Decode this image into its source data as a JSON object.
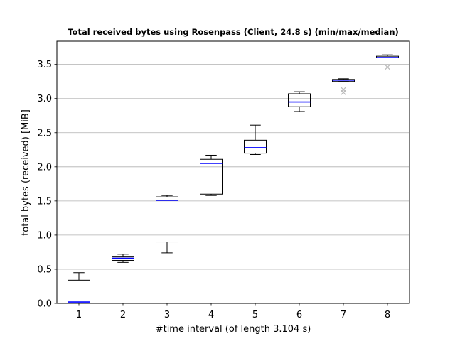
{
  "chart_data": {
    "type": "box",
    "title": "Total received bytes using Rosenpass (Client, 24.8 s) (min/max/median)",
    "xlabel": "#time interval (of length 3.104 s)",
    "ylabel": "total bytes (received) [MiB]",
    "ylim": [
      0,
      3.84
    ],
    "xlim": [
      0.5,
      8.5
    ],
    "yticks": [
      0.0,
      0.5,
      1.0,
      1.5,
      2.0,
      2.5,
      3.0,
      3.5
    ],
    "ytick_labels": [
      "0.0",
      "0.5",
      "1.0",
      "1.5",
      "2.0",
      "2.5",
      "3.0",
      "3.5"
    ],
    "categories": [
      "1",
      "2",
      "3",
      "4",
      "5",
      "6",
      "7",
      "8"
    ],
    "grid": "horizontal",
    "median_color": "#0000ff",
    "outlier_color": "#bbbbbb",
    "boxes": [
      {
        "x": 1,
        "whisker_low": 0.0,
        "q1": 0.0,
        "median": 0.02,
        "q3": 0.34,
        "whisker_high": 0.45,
        "outliers": []
      },
      {
        "x": 2,
        "whisker_low": 0.6,
        "q1": 0.63,
        "median": 0.66,
        "q3": 0.68,
        "whisker_high": 0.72,
        "outliers": []
      },
      {
        "x": 3,
        "whisker_low": 0.74,
        "q1": 0.9,
        "median": 1.51,
        "q3": 1.56,
        "whisker_high": 1.58,
        "outliers": []
      },
      {
        "x": 4,
        "whisker_low": 1.58,
        "q1": 1.6,
        "median": 2.05,
        "q3": 2.11,
        "whisker_high": 2.17,
        "outliers": []
      },
      {
        "x": 5,
        "whisker_low": 2.18,
        "q1": 2.2,
        "median": 2.28,
        "q3": 2.39,
        "whisker_high": 2.61,
        "outliers": []
      },
      {
        "x": 6,
        "whisker_low": 2.81,
        "q1": 2.88,
        "median": 2.95,
        "q3": 3.07,
        "whisker_high": 3.1,
        "outliers": []
      },
      {
        "x": 7,
        "whisker_low": 3.25,
        "q1": 3.25,
        "median": 3.27,
        "q3": 3.28,
        "whisker_high": 3.29,
        "outliers": [
          3.09,
          3.13
        ]
      },
      {
        "x": 8,
        "whisker_low": 3.6,
        "q1": 3.6,
        "median": 3.6,
        "q3": 3.62,
        "whisker_high": 3.64,
        "outliers": [
          3.46
        ]
      }
    ]
  }
}
